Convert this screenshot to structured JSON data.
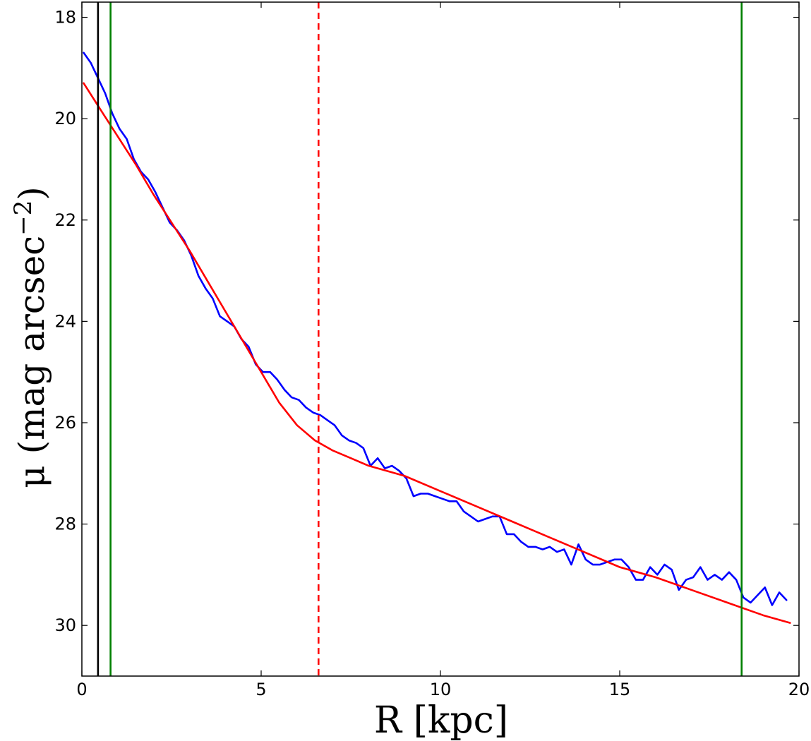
{
  "chart_data": {
    "type": "line",
    "xlabel": "R [kpc]",
    "ylabel": "μ (mag arcsec⁻²)",
    "ylabel_main": "μ (mag arcsec",
    "ylabel_exp": "−2",
    "ylabel_close": ")",
    "xlim": [
      0,
      20
    ],
    "ylim": [
      31,
      17.7
    ],
    "y_inverted": true,
    "grid": false,
    "xticks": [
      0,
      5,
      10,
      15,
      20
    ],
    "xtick_labels": [
      "0",
      "5",
      "10",
      "15",
      "20"
    ],
    "yticks": [
      18,
      20,
      22,
      24,
      26,
      28,
      30
    ],
    "ytick_labels": [
      "18",
      "20",
      "22",
      "24",
      "26",
      "28",
      "30"
    ],
    "series": [
      {
        "color": "#0000ff",
        "style": "solid",
        "x": [
          0.05,
          0.25,
          0.45,
          0.65,
          0.85,
          1.05,
          1.25,
          1.45,
          1.65,
          1.85,
          2.05,
          2.25,
          2.45,
          2.65,
          2.85,
          3.05,
          3.25,
          3.45,
          3.65,
          3.85,
          4.05,
          4.25,
          4.45,
          4.65,
          4.85,
          5.05,
          5.25,
          5.45,
          5.65,
          5.85,
          6.05,
          6.25,
          6.45,
          6.65,
          6.85,
          7.05,
          7.25,
          7.45,
          7.65,
          7.85,
          8.05,
          8.25,
          8.45,
          8.65,
          8.85,
          9.05,
          9.25,
          9.45,
          9.65,
          9.85,
          10.05,
          10.25,
          10.45,
          10.65,
          10.85,
          11.05,
          11.25,
          11.45,
          11.65,
          11.85,
          12.05,
          12.25,
          12.45,
          12.65,
          12.85,
          13.05,
          13.25,
          13.45,
          13.65,
          13.85,
          14.05,
          14.25,
          14.45,
          14.65,
          14.85,
          15.05,
          15.25,
          15.45,
          15.65,
          15.85,
          16.05,
          16.25,
          16.45,
          16.65,
          16.85,
          17.05,
          17.25,
          17.45,
          17.65,
          17.85,
          18.05,
          18.25,
          18.45,
          18.65,
          18.85,
          19.05,
          19.25,
          19.45,
          19.65
        ],
        "y": [
          18.7,
          18.9,
          19.2,
          19.5,
          19.9,
          20.2,
          20.4,
          20.8,
          21.05,
          21.2,
          21.45,
          21.75,
          22.05,
          22.2,
          22.4,
          22.7,
          23.1,
          23.35,
          23.55,
          23.9,
          24.0,
          24.1,
          24.35,
          24.5,
          24.85,
          25.0,
          25.0,
          25.15,
          25.35,
          25.5,
          25.55,
          25.7,
          25.8,
          25.85,
          25.95,
          26.05,
          26.25,
          26.35,
          26.4,
          26.5,
          26.85,
          26.7,
          26.9,
          26.85,
          26.95,
          27.1,
          27.45,
          27.4,
          27.4,
          27.45,
          27.5,
          27.55,
          27.55,
          27.75,
          27.85,
          27.95,
          27.9,
          27.85,
          27.85,
          28.2,
          28.2,
          28.35,
          28.45,
          28.45,
          28.5,
          28.45,
          28.55,
          28.5,
          28.8,
          28.4,
          28.7,
          28.8,
          28.8,
          28.75,
          28.7,
          28.7,
          28.85,
          29.1,
          29.1,
          28.85,
          29.0,
          28.8,
          28.9,
          29.3,
          29.1,
          29.05,
          28.85,
          29.1,
          29.0,
          29.1,
          28.95,
          29.1,
          29.45,
          29.55,
          29.4,
          29.25,
          29.6,
          29.35,
          29.5
        ]
      },
      {
        "color": "#ff0000",
        "style": "solid",
        "x": [
          0.05,
          0.5,
          1.0,
          1.5,
          2.0,
          2.5,
          3.0,
          3.5,
          4.0,
          4.5,
          5.0,
          5.5,
          6.0,
          6.5,
          7.0,
          7.5,
          8.0,
          9.0,
          10.0,
          11.0,
          12.0,
          13.0,
          14.0,
          15.0,
          16.0,
          17.0,
          18.0,
          19.0,
          19.75
        ],
        "y": [
          19.3,
          19.8,
          20.35,
          20.9,
          21.5,
          22.05,
          22.6,
          23.2,
          23.8,
          24.4,
          25.0,
          25.6,
          26.05,
          26.35,
          26.55,
          26.7,
          26.85,
          27.05,
          27.35,
          27.65,
          27.95,
          28.25,
          28.55,
          28.85,
          29.05,
          29.3,
          29.55,
          29.8,
          29.95
        ]
      }
    ],
    "vlines": [
      {
        "x": 0.45,
        "color": "#000000",
        "style": "solid"
      },
      {
        "x": 0.8,
        "color": "#008000",
        "style": "solid"
      },
      {
        "x": 6.6,
        "color": "#ff0000",
        "style": "dashed"
      },
      {
        "x": 18.4,
        "color": "#008000",
        "style": "solid"
      }
    ]
  }
}
